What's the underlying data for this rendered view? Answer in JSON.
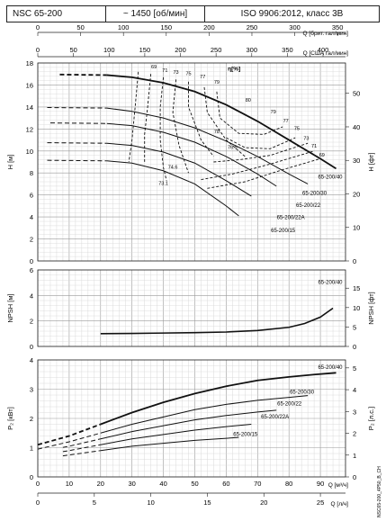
{
  "header": {
    "model": "NSC 65-200",
    "speed": "~ 1450 [об/мин]",
    "standard": "ISO 9906:2012, класс 3B"
  },
  "footer_code": "NSC65-200_4P50_B_CH",
  "axes": {
    "q_imp_label": "Q [брит. гал/мин]",
    "q_imp_ticks": [
      0,
      50,
      100,
      150,
      200,
      250,
      300,
      350
    ],
    "q_us_label": "Q [США гал/мин]",
    "q_us_ticks": [
      0,
      50,
      100,
      150,
      200,
      250,
      300,
      350,
      400
    ],
    "q_m3h_label": "Q [м³/ч]",
    "q_m3h_ticks": [
      0,
      10,
      20,
      30,
      40,
      50,
      60,
      70,
      80,
      90
    ],
    "q_ls_label": "Q [л/ч]",
    "q_ls_ticks": [
      0,
      5,
      10,
      15,
      20,
      25
    ]
  },
  "chart_data": [
    {
      "type": "line",
      "name": "head",
      "ylabel": "H [м]",
      "ylabel_right": "H [фт]",
      "xlim": [
        0,
        98
      ],
      "ylim": [
        0,
        18
      ],
      "yticks": [
        0,
        2,
        4,
        6,
        8,
        10,
        12,
        14,
        16,
        18
      ],
      "yticks_right": [
        0,
        10,
        20,
        30,
        40,
        50
      ],
      "series": [
        {
          "name": "65-200/40",
          "x": [
            22,
            30,
            40,
            50,
            60,
            70,
            80,
            90,
            95
          ],
          "y": [
            16.9,
            16.7,
            16.2,
            15.4,
            14.2,
            12.7,
            11.0,
            9.3,
            8.4
          ],
          "dashed_until": 22
        },
        {
          "name": "65-200/30",
          "x": [
            22,
            30,
            40,
            50,
            60,
            70,
            80,
            86
          ],
          "y": [
            13.9,
            13.6,
            13.0,
            12.1,
            10.9,
            9.5,
            7.9,
            7.0
          ],
          "dashed_until": 22
        },
        {
          "name": "65-200/22",
          "x": [
            22,
            30,
            40,
            50,
            60,
            70,
            76
          ],
          "y": [
            12.5,
            12.3,
            11.7,
            10.8,
            9.5,
            7.9,
            6.8
          ],
          "dashed_until": 22
        },
        {
          "name": "65-200/22A",
          "x": [
            22,
            30,
            40,
            50,
            60,
            68
          ],
          "y": [
            10.7,
            10.5,
            9.9,
            8.9,
            7.3,
            5.9
          ],
          "dashed_until": 22
        },
        {
          "name": "65-200/15",
          "x": [
            22,
            30,
            40,
            50,
            60,
            64
          ],
          "y": [
            9.1,
            8.9,
            8.2,
            7.0,
            5.0,
            4.1
          ],
          "dashed_until": 22
        }
      ],
      "efficiency_labels": [
        {
          "text": "69",
          "x": 37,
          "y": 17.5
        },
        {
          "text": "71",
          "x": 40.5,
          "y": 17.2
        },
        {
          "text": "73",
          "x": 44,
          "y": 17.0
        },
        {
          "text": "75",
          "x": 48,
          "y": 16.9
        },
        {
          "text": "77",
          "x": 52.5,
          "y": 16.6
        },
        {
          "text": "79",
          "x": 57,
          "y": 16.1
        },
        {
          "text": "80",
          "x": 67,
          "y": 14.5
        },
        {
          "text": "79",
          "x": 75,
          "y": 13.4
        },
        {
          "text": "77",
          "x": 79,
          "y": 12.6
        },
        {
          "text": "75",
          "x": 82.5,
          "y": 11.9
        },
        {
          "text": "73",
          "x": 85.5,
          "y": 11.0
        },
        {
          "text": "71",
          "x": 88,
          "y": 10.3
        },
        {
          "text": "69",
          "x": 90.5,
          "y": 9.5
        },
        {
          "text": "78",
          "x": 57,
          "y": 11.6
        },
        {
          "text": "76.9",
          "x": 62,
          "y": 10.2
        },
        {
          "text": "74.6",
          "x": 43,
          "y": 8.4
        },
        {
          "text": "73.1",
          "x": 40,
          "y": 6.9
        }
      ],
      "eta_label": "η[%]"
    },
    {
      "type": "line",
      "name": "npsh",
      "ylabel": "NPSH [м]",
      "ylabel_right": "NPSH [фт]",
      "xlim": [
        0,
        98
      ],
      "ylim": [
        0,
        6
      ],
      "yticks": [
        0,
        2,
        4,
        6
      ],
      "yticks_right": [
        0,
        5,
        10,
        15
      ],
      "series": [
        {
          "name": "65-200/40",
          "x": [
            20,
            30,
            40,
            50,
            60,
            70,
            80,
            85,
            90,
            94
          ],
          "y": [
            1.0,
            1.02,
            1.05,
            1.08,
            1.13,
            1.25,
            1.5,
            1.8,
            2.3,
            3.0
          ]
        }
      ]
    },
    {
      "type": "line",
      "name": "power",
      "ylabel": "P₂ [кВт]",
      "ylabel_right": "P₂ [л.с.]",
      "xlim": [
        0,
        98
      ],
      "ylim": [
        0,
        4
      ],
      "yticks": [
        0,
        1,
        2,
        3,
        4
      ],
      "yticks_right": [
        0,
        1,
        2,
        3,
        4,
        5
      ],
      "series": [
        {
          "name": "65-200/40",
          "x": [
            0,
            10,
            20,
            30,
            40,
            50,
            60,
            70,
            80,
            88,
            95
          ],
          "y": [
            1.1,
            1.4,
            1.8,
            2.2,
            2.55,
            2.85,
            3.1,
            3.3,
            3.42,
            3.5,
            3.56
          ],
          "dashed_until": 20
        },
        {
          "name": "65-200/30",
          "x": [
            0,
            10,
            20,
            30,
            40,
            50,
            60,
            70,
            80,
            86
          ],
          "y": [
            0.95,
            1.2,
            1.5,
            1.8,
            2.05,
            2.3,
            2.48,
            2.62,
            2.72,
            2.78
          ],
          "dashed_until": 20
        },
        {
          "name": "65-200/22",
          "x": [
            0,
            10,
            20,
            30,
            40,
            50,
            60,
            70,
            76
          ],
          "y": [
            0.85,
            1.05,
            1.3,
            1.55,
            1.75,
            1.95,
            2.1,
            2.22,
            2.28
          ],
          "dashed_until": 20
        },
        {
          "name": "65-200/22A",
          "x": [
            0,
            10,
            20,
            30,
            40,
            50,
            60,
            68
          ],
          "y": [
            0.72,
            0.9,
            1.1,
            1.3,
            1.45,
            1.6,
            1.72,
            1.8
          ],
          "dashed_until": 20
        },
        {
          "name": "65-200/15",
          "x": [
            0,
            10,
            20,
            30,
            40,
            50,
            60,
            64
          ],
          "y": [
            0.6,
            0.75,
            0.9,
            1.05,
            1.15,
            1.25,
            1.32,
            1.35
          ],
          "dashed_until": 20
        }
      ]
    }
  ]
}
